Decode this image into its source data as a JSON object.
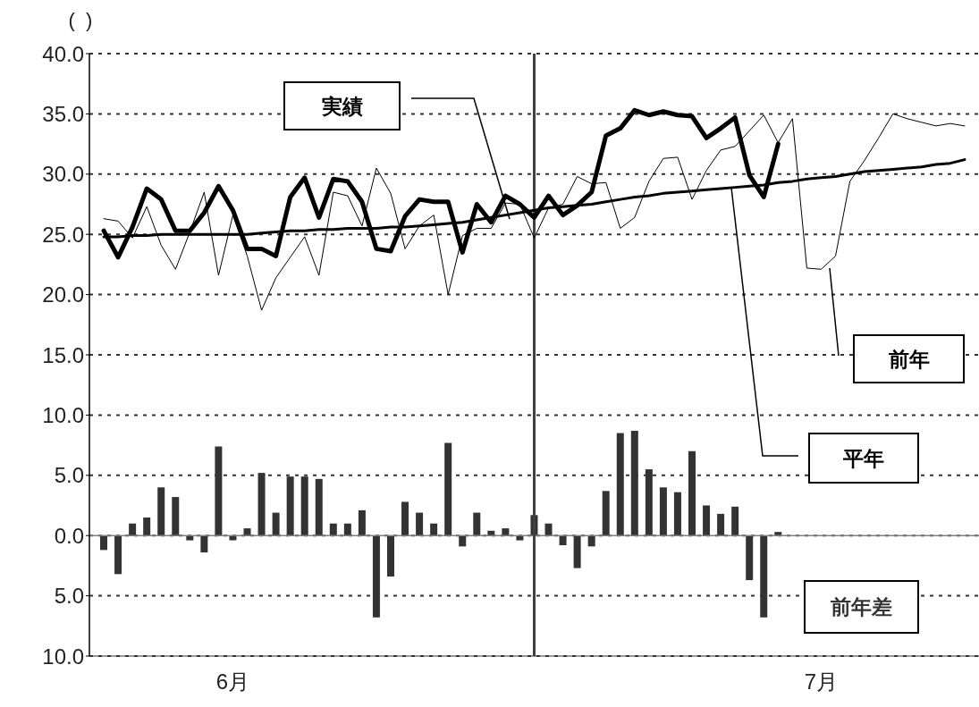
{
  "chart_data": {
    "type": "line",
    "ylabel": "(  )",
    "x": [
      "--06-01",
      "--06-02",
      "--06-03",
      "--06-04",
      "--06-05",
      "--06-06",
      "--06-07",
      "--06-08",
      "--06-09",
      "--06-10",
      "--06-11",
      "--06-12",
      "--06-13",
      "--06-14",
      "--06-15",
      "--06-16",
      "--06-17",
      "--06-18",
      "--06-19",
      "--06-20",
      "--06-21",
      "--06-22",
      "--06-23",
      "--06-24",
      "--06-25",
      "--06-26",
      "--06-27",
      "--06-28",
      "--06-29",
      "--06-30",
      "--07-01",
      "--07-02",
      "--07-03",
      "--07-04",
      "--07-05",
      "--07-06",
      "--07-07",
      "--07-08",
      "--07-09",
      "--07-10",
      "--07-11",
      "--07-12",
      "--07-13",
      "--07-14",
      "--07-15",
      "--07-16",
      "--07-17",
      "--07-18",
      "--07-19",
      "--07-20",
      "--07-21",
      "--07-22",
      "--07-23",
      "--07-24",
      "--07-25",
      "--07-26",
      "--07-27",
      "--07-28",
      "--07-29",
      "--07-30",
      "--07-31"
    ],
    "series": [
      {
        "name": "実績",
        "color": "#000000",
        "values": [
          25.3,
          23.1,
          25.6,
          28.8,
          27.9,
          25.3,
          25.3,
          26.8,
          29.0,
          27.0,
          23.8,
          23.8,
          23.2,
          28.1,
          29.7,
          26.4,
          29.6,
          29.4,
          27.7,
          23.8,
          23.6,
          26.5,
          27.9,
          27.7,
          27.7,
          23.5,
          27.5,
          26.0,
          28.2,
          27.5,
          26.4,
          28.2,
          26.6,
          27.4,
          28.5,
          33.2,
          33.8,
          35.3,
          34.9,
          35.2,
          34.9,
          34.8,
          33.0,
          33.8,
          34.7,
          29.9,
          28.1,
          32.5,
          null,
          null,
          null,
          null,
          null,
          null,
          null,
          null,
          null,
          null,
          null,
          null,
          null
        ]
      },
      {
        "name": "前年",
        "color": "#000000",
        "values": [
          26.3,
          26.1,
          24.7,
          27.3,
          24.1,
          22.1,
          25.2,
          28.5,
          21.6,
          26.6,
          23.2,
          18.7,
          21.4,
          23.1,
          24.8,
          21.6,
          28.5,
          28.2,
          25.7,
          30.5,
          28.4,
          23.8,
          25.7,
          26.6,
          20.0,
          24.9,
          25.5,
          25.5,
          27.6,
          27.5,
          24.7,
          27.2,
          27.5,
          29.8,
          29.2,
          29.3,
          25.5,
          26.4,
          29.4,
          31.3,
          31.4,
          27.9,
          30.3,
          32.0,
          32.3,
          33.6,
          34.9,
          32.6,
          34.6,
          22.2,
          22.1,
          23.2,
          29.4,
          31.1,
          33.0,
          35.0,
          34.6,
          34.3,
          34.0,
          34.2,
          34.0
        ]
      },
      {
        "name": "平年",
        "color": "#000000",
        "values": [
          24.8,
          24.8,
          24.9,
          24.9,
          25.0,
          25.0,
          25.0,
          25.0,
          25.0,
          25.0,
          25.0,
          25.1,
          25.2,
          25.3,
          25.3,
          25.4,
          25.4,
          25.5,
          25.5,
          25.5,
          25.6,
          25.6,
          25.7,
          25.8,
          25.9,
          26.0,
          26.2,
          26.4,
          26.6,
          26.8,
          27.0,
          27.2,
          27.3,
          27.4,
          27.5,
          27.7,
          27.9,
          28.1,
          28.2,
          28.4,
          28.5,
          28.6,
          28.7,
          28.8,
          28.9,
          29.0,
          29.1,
          29.3,
          29.4,
          29.6,
          29.7,
          29.8,
          30.0,
          30.2,
          30.3,
          30.4,
          30.5,
          30.6,
          30.8,
          30.9,
          31.2
        ]
      },
      {
        "name": "前年差",
        "type": "bar",
        "color": "#333333",
        "values": [
          -1.2,
          -3.2,
          1.0,
          1.5,
          4.0,
          3.2,
          -0.4,
          -1.4,
          7.4,
          -0.4,
          0.6,
          5.2,
          1.9,
          4.9,
          4.9,
          4.7,
          1.0,
          1.0,
          2.1,
          -6.8,
          -3.4,
          2.8,
          1.9,
          1.0,
          7.7,
          -0.9,
          1.9,
          0.4,
          0.6,
          -0.4,
          1.7,
          1.0,
          -0.8,
          -2.7,
          -0.9,
          3.7,
          8.5,
          8.7,
          5.5,
          4.0,
          3.6,
          7.0,
          2.5,
          1.8,
          2.4,
          -3.7,
          -6.8,
          0.3,
          null,
          null,
          null,
          null,
          null,
          null,
          null,
          null,
          null,
          null,
          null,
          null,
          null
        ]
      }
    ],
    "xlim": [
      "--05-31",
      "--08-01"
    ],
    "xticks": [
      {
        "value": "--06-10",
        "label": "6月"
      },
      {
        "value": "--07-21",
        "label": "7月"
      }
    ],
    "ylim": [
      -10,
      40
    ],
    "yticks": [
      {
        "value": -10,
        "label": "10.0"
      },
      {
        "value": -5,
        "label": "5.0"
      },
      {
        "value": 0,
        "label": "0.0"
      },
      {
        "value": 5,
        "label": "5.0"
      },
      {
        "value": 10,
        "label": "10.0"
      },
      {
        "value": 15,
        "label": "15.0"
      },
      {
        "value": 20,
        "label": "20.0"
      },
      {
        "value": 25,
        "label": "25.0"
      },
      {
        "value": 30,
        "label": "30.0"
      },
      {
        "value": 35,
        "label": "35.0"
      },
      {
        "value": 40,
        "label": "40.0"
      }
    ],
    "grid": "y",
    "ref_lines": [
      {
        "axis": "y",
        "value": 0,
        "color": "#808080"
      },
      {
        "axis": "x",
        "value": "--07-01",
        "color": "#404040"
      }
    ]
  }
}
